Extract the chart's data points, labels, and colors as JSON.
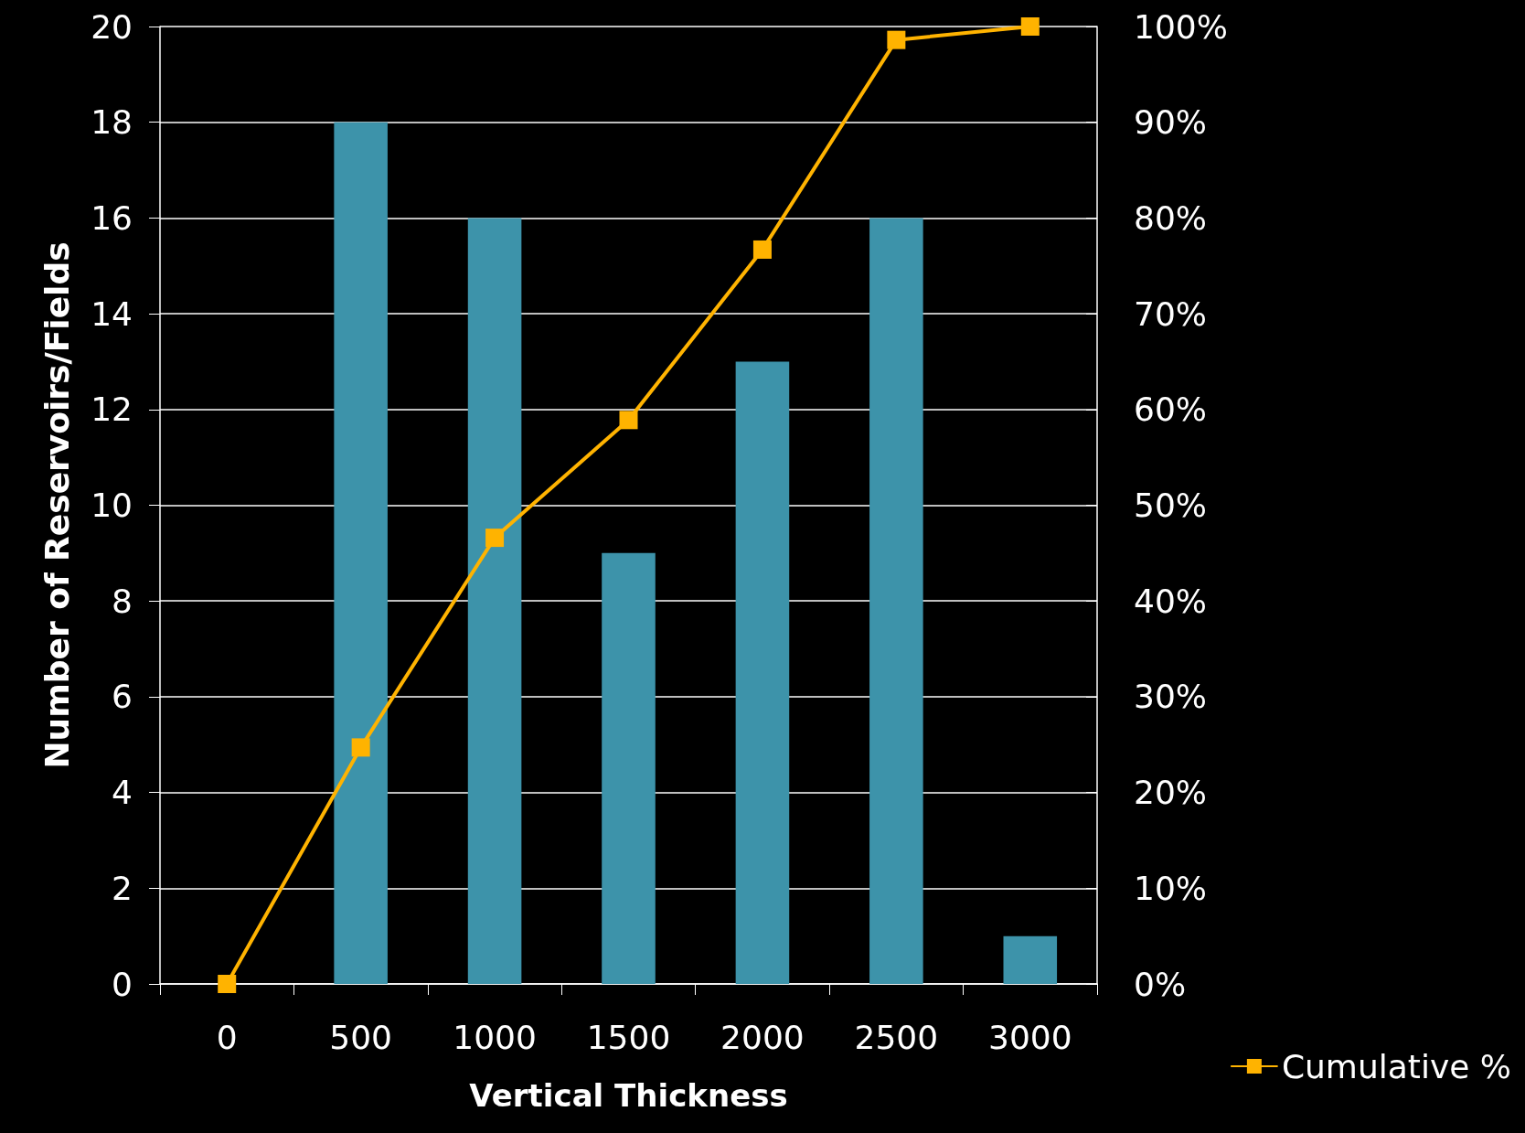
{
  "chart_data": {
    "type": "bar",
    "xlabel": "Vertical Thickness",
    "ylabel": "Number of Reservoirs/Fields",
    "categories": [
      "0",
      "500",
      "1000",
      "1500",
      "2000",
      "2500",
      "3000"
    ],
    "series": [
      {
        "color": "#3d93aa",
        "values": [
          0,
          18,
          16,
          9,
          13,
          16,
          1
        ]
      },
      {
        "type": "line",
        "name": "Cumulative %",
        "color": "#ffb300",
        "axis": "y2",
        "marker": "square",
        "values": [
          0,
          24.7,
          46.6,
          58.9,
          76.7,
          98.6,
          100
        ]
      }
    ],
    "ylim": [
      0,
      20
    ],
    "yticks": [
      0,
      2,
      4,
      6,
      8,
      10,
      12,
      14,
      16,
      18,
      20
    ],
    "y2lim": [
      0,
      100
    ],
    "y2ticks": [
      {
        "value": 0,
        "label": "0%"
      },
      {
        "value": 10,
        "label": "10%"
      },
      {
        "value": 20,
        "label": "20%"
      },
      {
        "value": 30,
        "label": "30%"
      },
      {
        "value": 40,
        "label": "40%"
      },
      {
        "value": 50,
        "label": "50%"
      },
      {
        "value": 60,
        "label": "60%"
      },
      {
        "value": 70,
        "label": "70%"
      },
      {
        "value": 80,
        "label": "80%"
      },
      {
        "value": 90,
        "label": "90%"
      },
      {
        "value": 100,
        "label": "100%"
      }
    ],
    "grid": "y",
    "legend": "bottom right"
  }
}
